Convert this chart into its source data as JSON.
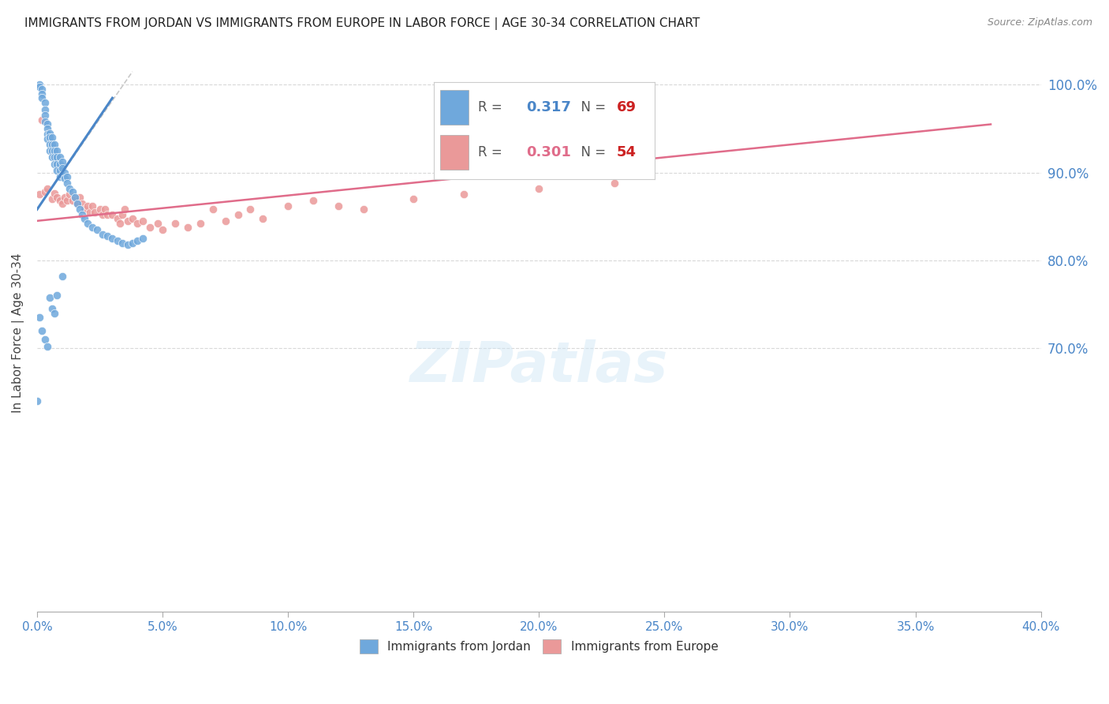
{
  "title": "IMMIGRANTS FROM JORDAN VS IMMIGRANTS FROM EUROPE IN LABOR FORCE | AGE 30-34 CORRELATION CHART",
  "source": "Source: ZipAtlas.com",
  "ylabel": "In Labor Force | Age 30-34",
  "legend_jordan_R": "0.317",
  "legend_jordan_N": "69",
  "legend_europe_R": "0.301",
  "legend_europe_N": "54",
  "legend_label_jordan": "Immigrants from Jordan",
  "legend_label_europe": "Immigrants from Europe",
  "blue_color": "#6fa8dc",
  "pink_color": "#ea9999",
  "blue_line_color": "#4a86c8",
  "pink_line_color": "#e06c8a",
  "axis_label_color": "#4a86c8",
  "title_color": "#222222",
  "grid_color": "#d0d0d0",
  "background_color": "#ffffff",
  "xmin": 0.0,
  "xmax": 0.4,
  "ymin": 0.4,
  "ymax": 1.035,
  "yticks": [
    0.7,
    0.8,
    0.9,
    1.0
  ],
  "ytick_labels": [
    "70.0%",
    "80.0%",
    "90.0%",
    "100.0%"
  ],
  "xtick_positions": [
    0.0,
    0.05,
    0.1,
    0.15,
    0.2,
    0.25,
    0.3,
    0.35,
    0.4
  ],
  "xtick_labels": [
    "0.0%",
    "5.0%",
    "10.0%",
    "15.0%",
    "20.0%",
    "25.0%",
    "30.0%",
    "35.0%",
    "40.0%"
  ],
  "jordan_x": [
    0.0,
    0.001,
    0.001,
    0.002,
    0.002,
    0.002,
    0.003,
    0.003,
    0.003,
    0.003,
    0.004,
    0.004,
    0.004,
    0.004,
    0.005,
    0.005,
    0.005,
    0.005,
    0.006,
    0.006,
    0.006,
    0.006,
    0.007,
    0.007,
    0.007,
    0.007,
    0.008,
    0.008,
    0.008,
    0.008,
    0.009,
    0.009,
    0.009,
    0.009,
    0.01,
    0.01,
    0.01,
    0.011,
    0.011,
    0.012,
    0.012,
    0.013,
    0.014,
    0.015,
    0.016,
    0.017,
    0.018,
    0.019,
    0.02,
    0.022,
    0.024,
    0.026,
    0.028,
    0.03,
    0.032,
    0.034,
    0.036,
    0.038,
    0.04,
    0.042,
    0.001,
    0.002,
    0.003,
    0.004,
    0.005,
    0.006,
    0.007,
    0.008,
    0.01
  ],
  "jordan_y": [
    0.64,
    1.0,
    0.998,
    0.995,
    0.99,
    0.985,
    0.98,
    0.972,
    0.965,
    0.958,
    0.955,
    0.95,
    0.944,
    0.938,
    0.945,
    0.94,
    0.932,
    0.925,
    0.94,
    0.932,
    0.925,
    0.918,
    0.932,
    0.925,
    0.918,
    0.91,
    0.925,
    0.918,
    0.91,
    0.902,
    0.918,
    0.91,
    0.902,
    0.895,
    0.912,
    0.905,
    0.897,
    0.9,
    0.893,
    0.895,
    0.888,
    0.882,
    0.878,
    0.872,
    0.865,
    0.858,
    0.852,
    0.848,
    0.842,
    0.838,
    0.835,
    0.83,
    0.828,
    0.825,
    0.822,
    0.82,
    0.818,
    0.82,
    0.822,
    0.825,
    0.735,
    0.72,
    0.71,
    0.702,
    0.758,
    0.745,
    0.74,
    0.76,
    0.782
  ],
  "europe_x": [
    0.001,
    0.002,
    0.003,
    0.004,
    0.006,
    0.007,
    0.008,
    0.009,
    0.01,
    0.011,
    0.012,
    0.013,
    0.014,
    0.015,
    0.016,
    0.017,
    0.018,
    0.019,
    0.02,
    0.021,
    0.022,
    0.023,
    0.025,
    0.026,
    0.027,
    0.028,
    0.03,
    0.032,
    0.033,
    0.034,
    0.035,
    0.036,
    0.038,
    0.04,
    0.042,
    0.045,
    0.048,
    0.05,
    0.055,
    0.06,
    0.065,
    0.07,
    0.075,
    0.08,
    0.085,
    0.09,
    0.1,
    0.11,
    0.12,
    0.13,
    0.15,
    0.17,
    0.2,
    0.23
  ],
  "europe_y": [
    0.875,
    0.96,
    0.878,
    0.882,
    0.87,
    0.876,
    0.872,
    0.868,
    0.865,
    0.872,
    0.868,
    0.875,
    0.868,
    0.872,
    0.865,
    0.872,
    0.865,
    0.858,
    0.862,
    0.855,
    0.862,
    0.855,
    0.858,
    0.852,
    0.858,
    0.852,
    0.852,
    0.848,
    0.842,
    0.852,
    0.858,
    0.845,
    0.848,
    0.842,
    0.845,
    0.838,
    0.842,
    0.835,
    0.842,
    0.838,
    0.842,
    0.858,
    0.845,
    0.852,
    0.858,
    0.848,
    0.862,
    0.868,
    0.862,
    0.858,
    0.87,
    0.875,
    0.882,
    0.888
  ]
}
